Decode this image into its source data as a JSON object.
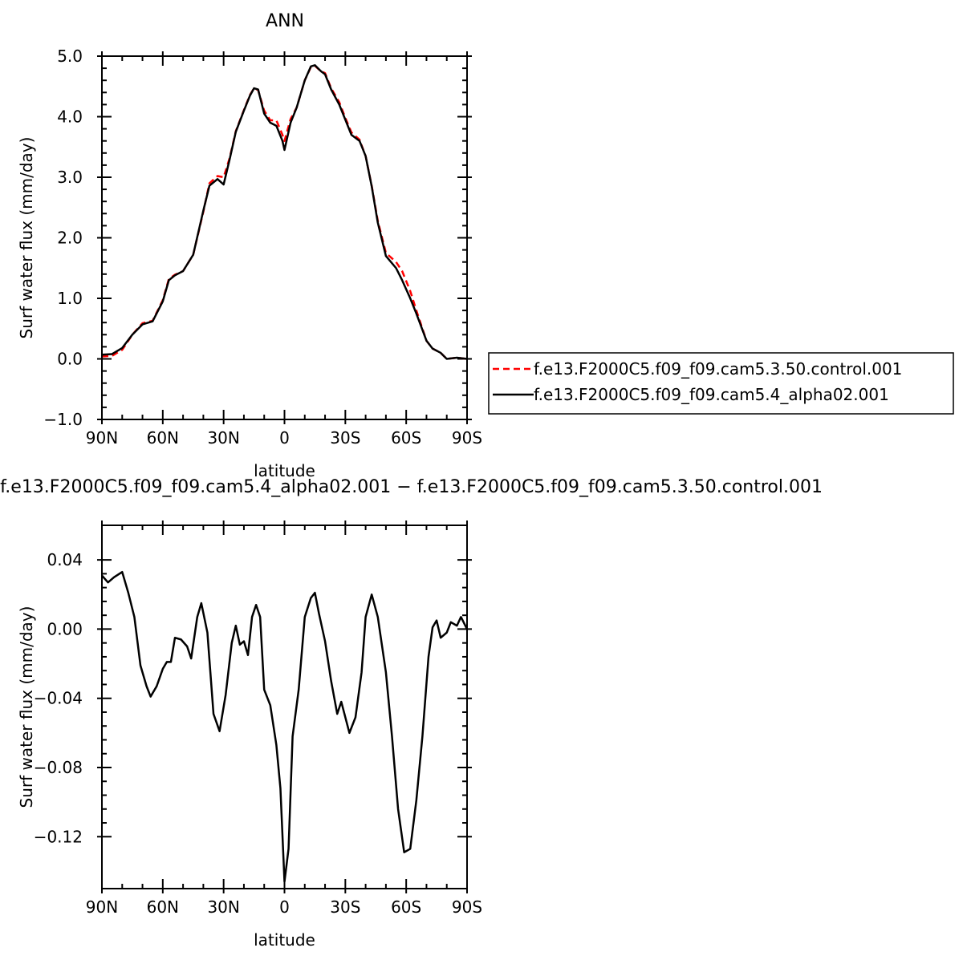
{
  "chart_data": [
    {
      "type": "line",
      "title": "ANN",
      "xlabel": "latitude",
      "ylabel": "Surf water flux (mm/day)",
      "x": [
        90,
        85,
        80,
        75,
        70,
        65,
        60,
        57,
        54,
        50,
        45,
        40,
        37,
        33,
        30,
        27,
        24,
        20,
        17,
        15,
        13,
        10,
        7,
        4,
        1,
        0,
        -3,
        -6,
        -10,
        -13,
        -15,
        -18,
        -20,
        -23,
        -27,
        -30,
        -33,
        -37,
        -40,
        -43,
        -46,
        -50,
        -55,
        -58,
        -62,
        -65,
        -70,
        -73,
        -77,
        -80,
        -85,
        -90
      ],
      "series": [
        {
          "name": "f.e13.F2000C5.f09_f09.cam5.3.50.control.001",
          "color": "#ff0000",
          "dash": true,
          "values": [
            0.04,
            0.05,
            0.15,
            0.4,
            0.59,
            0.63,
            0.97,
            1.32,
            1.39,
            1.45,
            1.72,
            2.43,
            2.9,
            3.02,
            3.0,
            3.32,
            3.76,
            4.11,
            4.36,
            4.47,
            4.44,
            4.1,
            3.94,
            3.94,
            3.7,
            3.6,
            3.96,
            4.15,
            4.6,
            4.82,
            4.84,
            4.75,
            4.72,
            4.47,
            4.24,
            3.98,
            3.74,
            3.62,
            3.35,
            2.86,
            2.28,
            1.75,
            1.6,
            1.45,
            1.12,
            0.8,
            0.3,
            0.17,
            0.1,
            0.0,
            0.02,
            0.0
          ]
        },
        {
          "name": "f.e13.F2000C5.f09_f09.cam5.4_alpha02.001",
          "color": "#000000",
          "dash": false,
          "values": [
            0.07,
            0.08,
            0.18,
            0.4,
            0.57,
            0.62,
            0.95,
            1.3,
            1.38,
            1.45,
            1.72,
            2.45,
            2.86,
            2.97,
            2.88,
            3.3,
            3.75,
            4.1,
            4.35,
            4.47,
            4.45,
            4.05,
            3.9,
            3.85,
            3.6,
            3.45,
            3.9,
            4.15,
            4.6,
            4.83,
            4.85,
            4.75,
            4.7,
            4.45,
            4.2,
            3.95,
            3.7,
            3.6,
            3.35,
            2.85,
            2.25,
            1.7,
            1.5,
            1.3,
            1.0,
            0.75,
            0.3,
            0.17,
            0.1,
            0.0,
            0.02,
            0.0
          ]
        }
      ],
      "xlim": [
        90,
        -90
      ],
      "xticks": [
        {
          "value": 90,
          "label": "90N"
        },
        {
          "value": 60,
          "label": "60N"
        },
        {
          "value": 30,
          "label": "30N"
        },
        0,
        {
          "value": -30,
          "label": "30S"
        },
        {
          "value": -60,
          "label": "60S"
        },
        {
          "value": -90,
          "label": "90S"
        }
      ],
      "ylim": [
        -1,
        5
      ],
      "yticks": [
        {
          "value": -1,
          "label": "−1.0"
        },
        {
          "value": 0,
          "label": "0.0"
        },
        {
          "value": 1,
          "label": "1.0"
        },
        {
          "value": 2,
          "label": "2.0"
        },
        {
          "value": 3,
          "label": "3.0"
        },
        {
          "value": 4,
          "label": "4.0"
        },
        {
          "value": 5,
          "label": "5.0"
        }
      ],
      "legend": "outside-right"
    },
    {
      "type": "line",
      "title": "f.e13.F2000C5.f09_f09.cam5.4_alpha02.001 − f.e13.F2000C5.f09_f09.cam5.3.50.control.001",
      "xlabel": "latitude",
      "ylabel": "Surf water flux (mm/day)",
      "x": [
        90,
        87,
        84,
        80,
        77,
        74,
        71,
        68,
        66,
        63,
        60,
        58,
        56,
        54,
        51,
        48,
        46,
        43,
        41,
        38,
        35,
        32,
        29,
        26,
        24,
        22,
        20,
        18,
        16,
        14,
        12,
        10,
        7,
        4,
        2,
        0,
        -2,
        -4,
        -7,
        -10,
        -13,
        -15,
        -17,
        -20,
        -23,
        -26,
        -28,
        -32,
        -35,
        -38,
        -40,
        -43,
        -46,
        -50,
        -53,
        -56,
        -59,
        -62,
        -65,
        -68,
        -71,
        -73,
        -75,
        -77,
        -80,
        -82,
        -85,
        -87,
        -90
      ],
      "series": [
        {
          "color": "#000000",
          "dash": false,
          "values": [
            0.031,
            0.027,
            0.03,
            0.033,
            0.021,
            0.007,
            -0.021,
            -0.033,
            -0.039,
            -0.033,
            -0.023,
            -0.019,
            -0.019,
            -0.005,
            -0.006,
            -0.01,
            -0.017,
            0.007,
            0.015,
            -0.002,
            -0.049,
            -0.059,
            -0.038,
            -0.008,
            0.002,
            -0.009,
            -0.007,
            -0.015,
            0.007,
            0.014,
            0.007,
            -0.035,
            -0.044,
            -0.067,
            -0.092,
            -0.146,
            -0.127,
            -0.062,
            -0.035,
            0.007,
            0.018,
            0.021,
            0.009,
            -0.007,
            -0.03,
            -0.049,
            -0.042,
            -0.06,
            -0.051,
            -0.025,
            0.007,
            0.02,
            0.007,
            -0.025,
            -0.062,
            -0.104,
            -0.129,
            -0.127,
            -0.099,
            -0.062,
            -0.016,
            0.001,
            0.005,
            -0.005,
            -0.002,
            0.004,
            0.002,
            0.007,
            0
          ]
        }
      ],
      "xlim": [
        90,
        -90
      ],
      "xticks": [
        {
          "value": 90,
          "label": "90N"
        },
        {
          "value": 60,
          "label": "60N"
        },
        {
          "value": 30,
          "label": "30N"
        },
        0,
        {
          "value": -30,
          "label": "30S"
        },
        {
          "value": -60,
          "label": "60S"
        },
        {
          "value": -90,
          "label": "90S"
        }
      ],
      "ylim": [
        -0.15,
        0.06
      ],
      "yticks": [
        {
          "value": -0.12,
          "label": "−0.12"
        },
        {
          "value": -0.08,
          "label": "−0.08"
        },
        {
          "value": -0.04,
          "label": "−0.04"
        },
        {
          "value": 0,
          "label": "0.00"
        },
        {
          "value": 0.04,
          "label": "0.04"
        }
      ]
    }
  ]
}
